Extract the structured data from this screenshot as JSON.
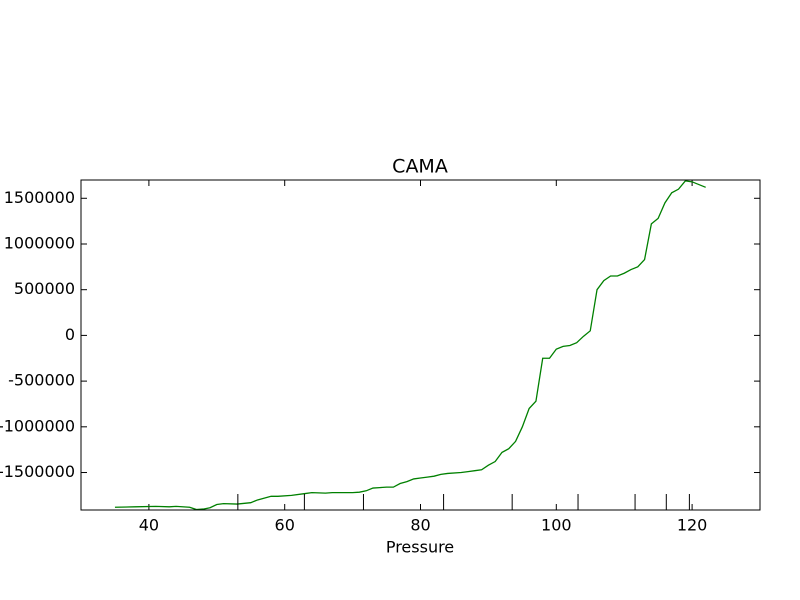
{
  "chart_data": {
    "type": "line",
    "title": "CAMA",
    "x_label": "Pressure",
    "x": [
      35,
      38,
      41,
      43,
      44,
      46,
      47,
      48,
      49,
      50,
      51,
      53,
      55,
      56,
      58,
      59,
      61,
      63,
      64,
      66,
      67,
      70,
      71,
      72,
      73,
      74,
      75,
      76,
      77,
      78,
      79,
      80,
      81,
      82,
      83,
      84,
      86,
      87,
      88,
      89,
      90,
      91,
      92,
      93,
      94,
      95,
      96,
      97,
      98,
      99,
      100,
      101,
      102,
      103,
      104,
      105,
      106,
      107,
      108,
      109,
      110,
      111,
      112,
      113,
      114,
      115,
      116,
      117,
      118,
      119,
      120,
      122
    ],
    "series": [
      {
        "color": "#008000",
        "values": [
          -1880000,
          -1875000,
          -1870000,
          -1875000,
          -1870000,
          -1880000,
          -1905000,
          -1900000,
          -1885000,
          -1850000,
          -1840000,
          -1845000,
          -1830000,
          -1800000,
          -1760000,
          -1760000,
          -1750000,
          -1730000,
          -1720000,
          -1725000,
          -1720000,
          -1720000,
          -1715000,
          -1700000,
          -1670000,
          -1665000,
          -1660000,
          -1660000,
          -1620000,
          -1600000,
          -1570000,
          -1560000,
          -1550000,
          -1540000,
          -1520000,
          -1510000,
          -1500000,
          -1490000,
          -1480000,
          -1470000,
          -1420000,
          -1380000,
          -1280000,
          -1240000,
          -1160000,
          -1000000,
          -800000,
          -720000,
          -250000,
          -250000,
          -150000,
          -120000,
          -110000,
          -80000,
          -10000,
          50000,
          500000,
          600000,
          650000,
          650000,
          680000,
          720000,
          750000,
          830000,
          1220000,
          1280000,
          1450000,
          1560000,
          1600000,
          1690000,
          1680000,
          1620000
        ]
      }
    ],
    "markers": [
      53.1,
      62.9,
      71.6,
      83.4,
      93.5,
      103.2,
      111.6,
      116.2,
      119.6
    ],
    "xlim": [
      30,
      130
    ],
    "xticks": [
      40,
      60,
      80,
      100,
      120
    ],
    "ylim": [
      -1910000,
      1700000
    ],
    "yticks": [
      -1500000,
      -1000000,
      -500000,
      0,
      500000,
      1000000,
      1500000
    ]
  }
}
